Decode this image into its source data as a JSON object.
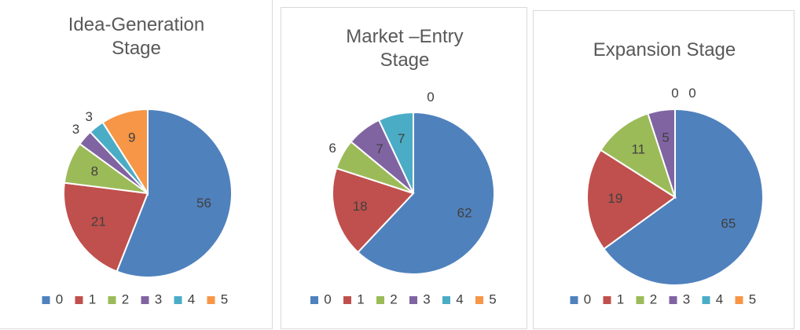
{
  "chart_data": [
    {
      "type": "pie",
      "title": "Idea-Generation Stage",
      "categories": [
        "0",
        "1",
        "2",
        "3",
        "4",
        "5"
      ],
      "values": [
        56,
        21,
        8,
        3,
        3,
        9
      ],
      "colors": [
        "#4f81bd",
        "#c0504d",
        "#9bbb59",
        "#8064a2",
        "#4bacc6",
        "#f79646"
      ],
      "legend": "bottom"
    },
    {
      "type": "pie",
      "title": "Market –Entry Stage",
      "categories": [
        "0",
        "1",
        "2",
        "3",
        "4",
        "5"
      ],
      "values": [
        62,
        18,
        6,
        7,
        7,
        0
      ],
      "colors": [
        "#4f81bd",
        "#c0504d",
        "#9bbb59",
        "#8064a2",
        "#4bacc6",
        "#f79646"
      ],
      "legend": "bottom"
    },
    {
      "type": "pie",
      "title": "Expansion Stage",
      "categories": [
        "0",
        "1",
        "2",
        "3",
        "4",
        "5"
      ],
      "values": [
        65,
        19,
        11,
        5,
        0,
        0
      ],
      "colors": [
        "#4f81bd",
        "#c0504d",
        "#9bbb59",
        "#8064a2",
        "#4bacc6",
        "#f79646"
      ],
      "legend": "bottom"
    }
  ]
}
